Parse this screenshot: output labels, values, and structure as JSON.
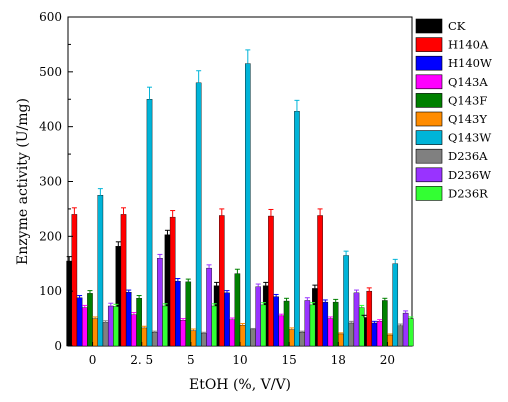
{
  "chart_data": {
    "type": "bar",
    "xlabel": "EtOH (%, V/V)",
    "ylabel": "Enzyme activity (U/mg)",
    "ylim": [
      0,
      600
    ],
    "yticks": [
      0,
      100,
      200,
      300,
      400,
      500,
      600
    ],
    "categories": [
      "0",
      "2. 5",
      "5",
      "10",
      "15",
      "18",
      "20"
    ],
    "legend_position": "top-right",
    "series": [
      {
        "name": "CK",
        "color": "#000000",
        "values": [
          155,
          182,
          203,
          110,
          110,
          105,
          52
        ],
        "errors": [
          8,
          8,
          8,
          6,
          6,
          6,
          4
        ]
      },
      {
        "name": "H140A",
        "color": "#ff0000",
        "values": [
          240,
          240,
          235,
          238,
          237,
          238,
          100
        ],
        "errors": [
          12,
          12,
          12,
          12,
          12,
          12,
          6
        ]
      },
      {
        "name": "H140W",
        "color": "#0000ff",
        "values": [
          88,
          98,
          118,
          97,
          90,
          80,
          42
        ],
        "errors": [
          4,
          4,
          5,
          4,
          4,
          4,
          3
        ]
      },
      {
        "name": "Q143A",
        "color": "#ff00ff",
        "values": [
          70,
          57,
          47,
          48,
          55,
          50,
          45
        ],
        "errors": [
          4,
          4,
          3,
          3,
          3,
          3,
          3
        ]
      },
      {
        "name": "Q143F",
        "color": "#008000",
        "values": [
          96,
          87,
          117,
          132,
          82,
          80,
          83
        ],
        "errors": [
          5,
          5,
          5,
          8,
          5,
          5,
          4
        ]
      },
      {
        "name": "Q143Y",
        "color": "#ff8c00",
        "values": [
          50,
          33,
          28,
          38,
          30,
          22,
          20
        ],
        "errors": [
          3,
          3,
          3,
          3,
          3,
          2,
          2
        ]
      },
      {
        "name": "Q143W",
        "color": "#00b4d8",
        "values": [
          275,
          450,
          480,
          515,
          428,
          165,
          150
        ],
        "errors": [
          12,
          22,
          22,
          25,
          20,
          8,
          8
        ]
      },
      {
        "name": "D236A",
        "color": "#808080",
        "values": [
          43,
          25,
          23,
          30,
          25,
          42,
          37
        ],
        "errors": [
          3,
          2,
          2,
          2,
          2,
          3,
          3
        ]
      },
      {
        "name": "D236W",
        "color": "#9933ff",
        "values": [
          73,
          160,
          142,
          108,
          83,
          97,
          60
        ],
        "errors": [
          5,
          7,
          6,
          5,
          5,
          5,
          4
        ]
      },
      {
        "name": "D236R",
        "color": "#33ff33",
        "values": [
          72,
          73,
          73,
          75,
          75,
          70,
          50
        ],
        "errors": [
          4,
          4,
          4,
          4,
          4,
          4,
          3
        ]
      }
    ]
  }
}
